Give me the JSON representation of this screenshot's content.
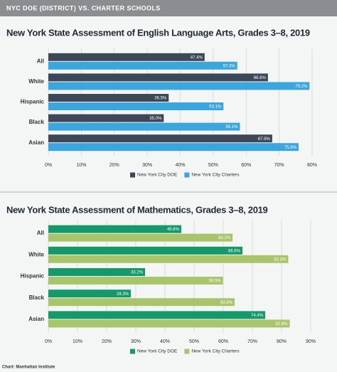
{
  "header": {
    "title": "NYC DOE (DISTRICT) VS. CHARTER SCHOOLS"
  },
  "source": "Chart: Manhattan Institute",
  "chart_data": [
    {
      "type": "bar",
      "orientation": "horizontal",
      "title": "New York State Assessment of English Language Arts, Grades 3–8, 2019",
      "categories": [
        "All",
        "White",
        "Hispanic",
        "Black",
        "Asian"
      ],
      "series": [
        {
          "name": "New York City DOE",
          "color": "#3c4858",
          "values": [
            47.4,
            66.6,
            36.5,
            35.0,
            67.9
          ],
          "value_labels": [
            "47.4%",
            "66.6%",
            "36.5%",
            "35.0%",
            "67.9%"
          ]
        },
        {
          "name": "New York City Charters",
          "color": "#3aa6dd",
          "values": [
            57.3,
            79.2,
            53.1,
            58.1,
            75.9
          ],
          "value_labels": [
            "57.3%",
            "79.2%",
            "53.1%",
            "58.1%",
            "75.9%"
          ]
        }
      ],
      "xlim": [
        0,
        80
      ],
      "xticks": [
        {
          "value": 0,
          "label": "0%"
        },
        {
          "value": 10,
          "label": "10%"
        },
        {
          "value": 20,
          "label": "20%"
        },
        {
          "value": 30,
          "label": "30%"
        },
        {
          "value": 40,
          "label": "40%"
        },
        {
          "value": 50,
          "label": "50%"
        },
        {
          "value": 60,
          "label": "60%"
        },
        {
          "value": 70,
          "label": "70%"
        },
        {
          "value": 80,
          "label": "80%"
        }
      ],
      "grid": true,
      "legend": "bottom"
    },
    {
      "type": "bar",
      "orientation": "horizontal",
      "title": "New York State Assessment of Mathematics, Grades 3–8, 2019",
      "categories": [
        "All",
        "White",
        "Hispanic",
        "Black",
        "Asian"
      ],
      "series": [
        {
          "name": "New York City DOE",
          "color": "#16996a",
          "values": [
            45.6,
            66.6,
            33.2,
            28.3,
            74.4
          ],
          "value_labels": [
            "45.6%",
            "66.6%",
            "33.2%",
            "28.3%",
            "74.4%"
          ]
        },
        {
          "name": "New York City Charters",
          "color": "#a9c56b",
          "values": [
            63.2,
            82.3,
            59.9,
            63.9,
            82.8
          ],
          "value_labels": [
            "63.2%",
            "82.3%",
            "59.9%",
            "63.9%",
            "82.8%"
          ]
        }
      ],
      "xlim": [
        0,
        90
      ],
      "xticks": [
        {
          "value": 0,
          "label": "0%"
        },
        {
          "value": 10,
          "label": "10%"
        },
        {
          "value": 20,
          "label": "20%"
        },
        {
          "value": 30,
          "label": "30%"
        },
        {
          "value": 40,
          "label": "40%"
        },
        {
          "value": 50,
          "label": "50%"
        },
        {
          "value": 60,
          "label": "60%"
        },
        {
          "value": 70,
          "label": "70%"
        },
        {
          "value": 80,
          "label": "80%"
        },
        {
          "value": 90,
          "label": "90%"
        }
      ],
      "grid": true,
      "legend": "bottom"
    }
  ]
}
